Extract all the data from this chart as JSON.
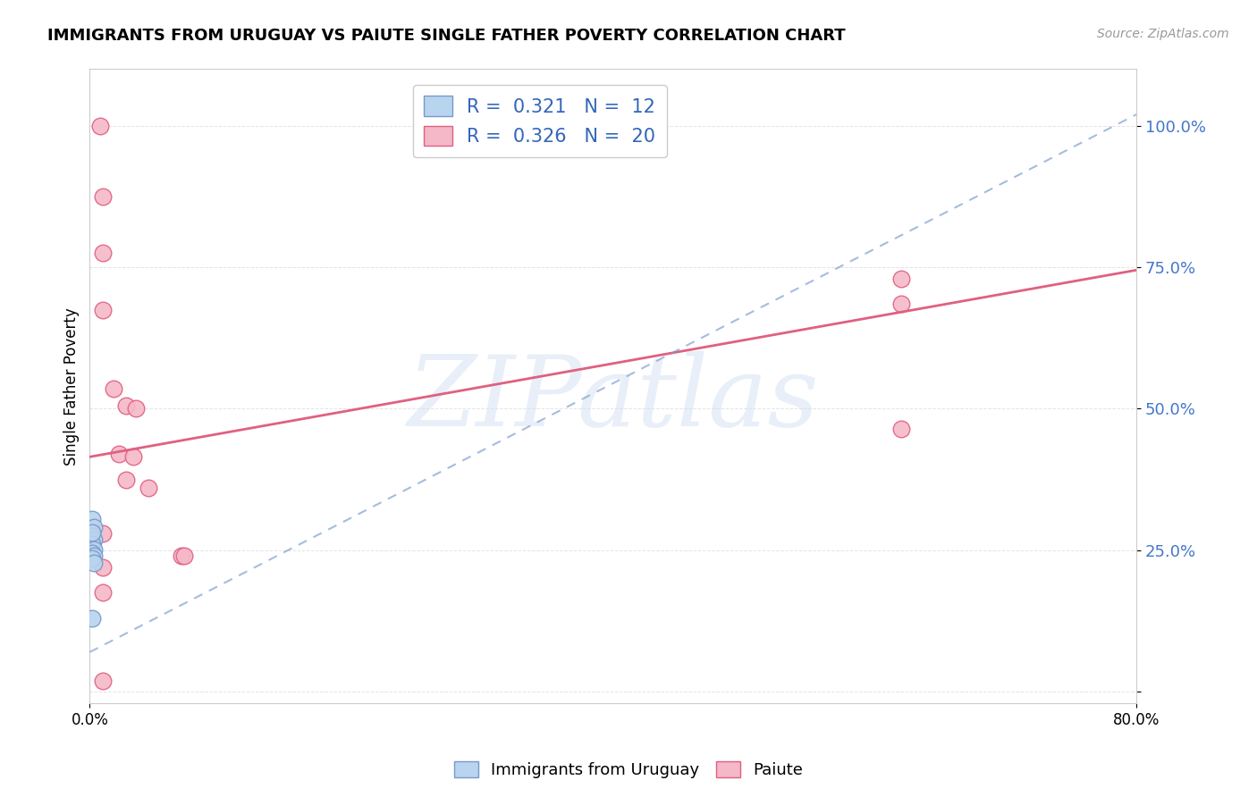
{
  "title": "IMMIGRANTS FROM URUGUAY VS PAIUTE SINGLE FATHER POVERTY CORRELATION CHART",
  "source": "Source: ZipAtlas.com",
  "ylabel": "Single Father Poverty",
  "x_lim": [
    0.0,
    0.8
  ],
  "y_lim": [
    -0.02,
    1.1
  ],
  "legend_line1": "R =  0.321   N =  12",
  "legend_line2": "R =  0.326   N =  20",
  "watermark": "ZIPatlas",
  "blue_fill": "#b8d4ee",
  "pink_fill": "#f5b8c8",
  "blue_edge": "#7799cc",
  "pink_edge": "#e06080",
  "blue_dots": [
    [
      0.002,
      0.305
    ],
    [
      0.003,
      0.29
    ],
    [
      0.002,
      0.275
    ],
    [
      0.003,
      0.268
    ],
    [
      0.002,
      0.26
    ],
    [
      0.003,
      0.252
    ],
    [
      0.002,
      0.245
    ],
    [
      0.003,
      0.24
    ],
    [
      0.002,
      0.235
    ],
    [
      0.003,
      0.228
    ],
    [
      0.002,
      0.13
    ],
    [
      0.002,
      0.282
    ]
  ],
  "pink_dots": [
    [
      0.008,
      1.0
    ],
    [
      0.01,
      0.875
    ],
    [
      0.01,
      0.775
    ],
    [
      0.01,
      0.675
    ],
    [
      0.018,
      0.535
    ],
    [
      0.028,
      0.505
    ],
    [
      0.035,
      0.5
    ],
    [
      0.022,
      0.42
    ],
    [
      0.033,
      0.415
    ],
    [
      0.028,
      0.375
    ],
    [
      0.045,
      0.36
    ],
    [
      0.01,
      0.28
    ],
    [
      0.01,
      0.175
    ],
    [
      0.07,
      0.24
    ],
    [
      0.072,
      0.24
    ],
    [
      0.62,
      0.73
    ],
    [
      0.62,
      0.685
    ],
    [
      0.62,
      0.465
    ],
    [
      0.01,
      0.02
    ],
    [
      0.01,
      0.22
    ]
  ],
  "pink_line_x0": 0.0,
  "pink_line_x1": 0.8,
  "pink_line_y0": 0.415,
  "pink_line_y1": 0.745,
  "blue_line_x0": 0.0,
  "blue_line_x1": 0.8,
  "blue_line_y0": 0.07,
  "blue_line_y1": 1.02,
  "y_ticks": [
    0.0,
    0.25,
    0.5,
    0.75,
    1.0
  ],
  "y_tick_labels": [
    "",
    "25.0%",
    "50.0%",
    "75.0%",
    "100.0%"
  ],
  "x_tick_labels": [
    "0.0%",
    "80.0%"
  ],
  "x_ticks": [
    0.0,
    0.8
  ]
}
